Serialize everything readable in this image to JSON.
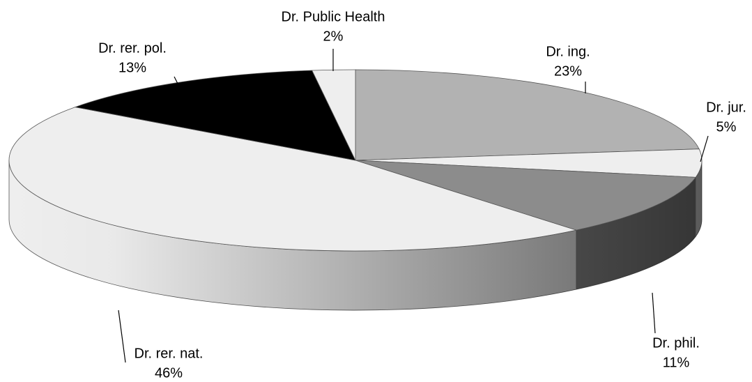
{
  "chart_data": {
    "type": "pie3d",
    "categories": [
      "Dr. ing.",
      "Dr. jur.",
      "Dr. phil.",
      "Dr. rer. nat.",
      "Dr. rer. pol.",
      "Dr. Public Health"
    ],
    "values": [
      23,
      5,
      11,
      46,
      13,
      2
    ],
    "value_labels": [
      "23%",
      "5%",
      "11%",
      "46%",
      "13%",
      "2%"
    ],
    "colors": [
      "#b2b2b2",
      "#eeeeee",
      "#8c8c8c",
      "#eeeeee",
      "#000000",
      "#eeeeee"
    ]
  }
}
